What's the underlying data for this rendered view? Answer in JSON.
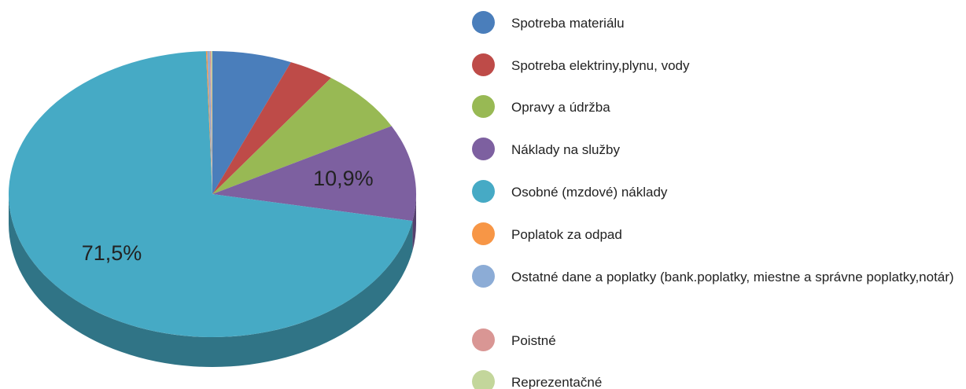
{
  "chart_data": {
    "type": "pie",
    "categories": [
      "Spotreba materiálu",
      "Spotreba elektriny,plynu, vody",
      "Opravy a údržba",
      "Náklady na služby",
      "Osobné (mzdové) náklady",
      "Poplatok za odpad",
      "Ostatné dane a poplatky (bank.poplatky, miestne a správne poplatky,notár)",
      "Poistné",
      "Reprezentačné"
    ],
    "values": [
      6.3,
      3.6,
      7.2,
      10.9,
      71.5,
      0.1,
      0.2,
      0.1,
      0.1
    ],
    "value_labels": [
      null,
      null,
      null,
      "10,9%",
      "71,5%",
      null,
      null,
      null,
      null
    ],
    "colors": [
      "#4a7ebb",
      "#be4b48",
      "#98b954",
      "#7d60a0",
      "#46aac5",
      "#f79646",
      "#8cacd6",
      "#d99694",
      "#c3d69b"
    ],
    "legend": "right"
  }
}
